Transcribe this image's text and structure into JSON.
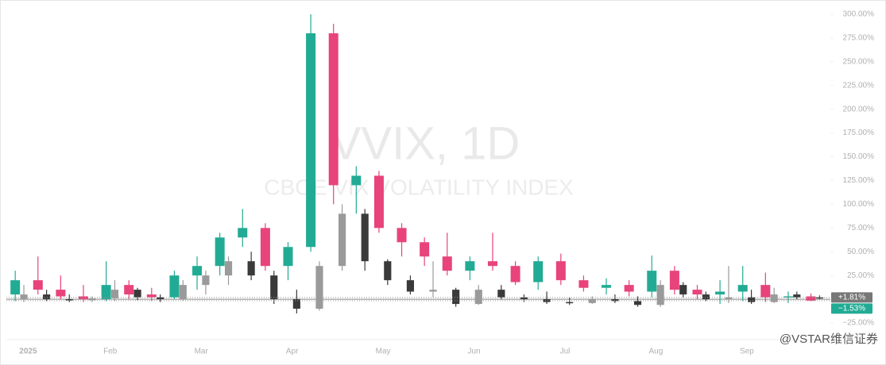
{
  "chart_data": {
    "type": "candlestick",
    "watermark_title": "VVIX, 1D",
    "watermark_subtitle": "CBOE VIX VOLATILITY INDEX",
    "credit": "@VSTAR维信证券",
    "categories": [
      "2025",
      null,
      null,
      null,
      "Feb",
      null,
      null,
      null,
      "Mar",
      null,
      null,
      null,
      "Apr",
      null,
      null,
      null,
      "May",
      null,
      null,
      null,
      "Jun",
      null,
      null,
      null,
      "Jul",
      null,
      null,
      null,
      "Aug",
      null,
      null,
      null,
      "Sep",
      null,
      null,
      null
    ],
    "ylim": [
      -30,
      310
    ],
    "yticks": [
      {
        "value": -25,
        "label": "−25.00%"
      },
      {
        "value": 25,
        "label": "25.00%"
      },
      {
        "value": 50,
        "label": "50.00%"
      },
      {
        "value": 75,
        "label": "75.00%"
      },
      {
        "value": 100,
        "label": "100.00%"
      },
      {
        "value": 125,
        "label": "125.00%"
      },
      {
        "value": 150,
        "label": "150.00%"
      },
      {
        "value": 175,
        "label": "175.00%"
      },
      {
        "value": 200,
        "label": "200.00%"
      },
      {
        "value": 225,
        "label": "225.00%"
      },
      {
        "value": 250,
        "label": "250.00%"
      },
      {
        "value": 275,
        "label": "275.00%"
      },
      {
        "value": 300,
        "label": "300.00%"
      }
    ],
    "series": [
      {
        "up_color": "#22ab94",
        "down_color": "#e8437b",
        "last_label": {
          "value": -1.53,
          "label": "−1.53%"
        },
        "values": [
          [
            5,
            30,
            -2,
            20
          ],
          [
            20,
            45,
            5,
            10
          ],
          [
            10,
            25,
            0,
            3
          ],
          [
            3,
            15,
            -3,
            0
          ],
          [
            0,
            40,
            -2,
            15
          ],
          [
            15,
            20,
            0,
            5
          ],
          [
            5,
            12,
            -2,
            2
          ],
          [
            2,
            30,
            0,
            25
          ],
          [
            25,
            45,
            10,
            35
          ],
          [
            35,
            70,
            25,
            65
          ],
          [
            65,
            95,
            55,
            75
          ],
          [
            75,
            80,
            30,
            35
          ],
          [
            35,
            60,
            20,
            55
          ],
          [
            55,
            300,
            50,
            280
          ],
          [
            280,
            290,
            100,
            120
          ],
          [
            120,
            140,
            90,
            130
          ],
          [
            130,
            135,
            70,
            75
          ],
          [
            75,
            80,
            45,
            60
          ],
          [
            60,
            65,
            35,
            45
          ],
          [
            45,
            70,
            25,
            30
          ],
          [
            30,
            45,
            20,
            40
          ],
          [
            40,
            70,
            30,
            35
          ],
          [
            35,
            40,
            15,
            18
          ],
          [
            18,
            45,
            10,
            40
          ],
          [
            40,
            48,
            15,
            20
          ],
          [
            20,
            25,
            8,
            12
          ],
          [
            12,
            22,
            5,
            15
          ],
          [
            15,
            20,
            3,
            8
          ],
          [
            8,
            46,
            2,
            30
          ],
          [
            30,
            35,
            5,
            10
          ],
          [
            10,
            15,
            0,
            5
          ],
          [
            5,
            20,
            -5,
            8
          ],
          [
            8,
            35,
            -2,
            15
          ],
          [
            15,
            28,
            -3,
            2
          ],
          [
            2,
            8,
            -4,
            3
          ],
          [
            3,
            6,
            -2,
            -1.53
          ]
        ]
      },
      {
        "up_color": "#9a9a9a",
        "down_color": "#3a3a3a",
        "last_label": {
          "value": 1.81,
          "label": "+1.81%"
        },
        "values": [
          [
            0,
            15,
            -3,
            5
          ],
          [
            5,
            10,
            -2,
            0
          ],
          [
            0,
            5,
            -3,
            -1
          ],
          [
            -1,
            3,
            -3,
            1
          ],
          [
            1,
            20,
            -2,
            10
          ],
          [
            10,
            12,
            -1,
            2
          ],
          [
            2,
            5,
            -3,
            0
          ],
          [
            0,
            20,
            -2,
            15
          ],
          [
            15,
            30,
            5,
            25
          ],
          [
            25,
            45,
            15,
            40
          ],
          [
            40,
            50,
            20,
            25
          ],
          [
            25,
            30,
            -5,
            0
          ],
          [
            0,
            10,
            -15,
            -10
          ],
          [
            -10,
            40,
            -12,
            35
          ],
          [
            35,
            100,
            30,
            90
          ],
          [
            90,
            95,
            30,
            40
          ],
          [
            40,
            42,
            15,
            20
          ],
          [
            20,
            25,
            5,
            8
          ],
          [
            8,
            40,
            2,
            10
          ],
          [
            10,
            12,
            -8,
            -5
          ],
          [
            -5,
            15,
            -6,
            10
          ],
          [
            10,
            15,
            0,
            2
          ],
          [
            2,
            5,
            -3,
            0
          ],
          [
            0,
            8,
            -5,
            -3
          ],
          [
            -3,
            2,
            -6,
            -4
          ],
          [
            -4,
            3,
            -5,
            0
          ],
          [
            0,
            5,
            -4,
            -2
          ],
          [
            -2,
            3,
            -8,
            -6
          ],
          [
            -6,
            20,
            -8,
            15
          ],
          [
            15,
            18,
            2,
            5
          ],
          [
            5,
            8,
            -2,
            0
          ],
          [
            0,
            35,
            -4,
            2
          ],
          [
            2,
            10,
            -5,
            -3
          ],
          [
            -3,
            12,
            -4,
            5
          ],
          [
            5,
            8,
            0,
            2
          ],
          [
            2,
            4,
            0,
            1.81
          ]
        ]
      }
    ]
  }
}
